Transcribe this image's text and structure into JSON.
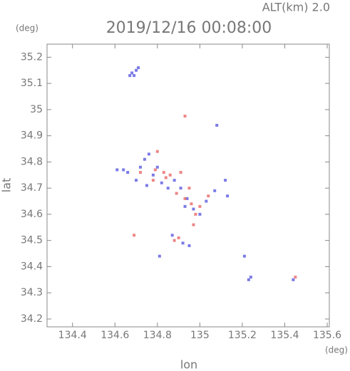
{
  "chart_data": {
    "type": "scatter",
    "title": "2019/12/16 00:08:00",
    "subtitle": "ALT(km) 2.0",
    "y_unit": "(deg)",
    "x_unit": "(deg)",
    "xlabel": "lon",
    "ylabel": "lat",
    "xlim": [
      134.28,
      135.61
    ],
    "ylim": [
      34.17,
      35.25
    ],
    "xticks": [
      134.4,
      134.6,
      134.8,
      135.0,
      135.2,
      135.4,
      135.6
    ],
    "yticks": [
      34.2,
      34.3,
      34.4,
      34.5,
      34.6,
      34.7,
      34.8,
      34.9,
      35.0,
      35.1,
      35.2
    ],
    "series": [
      {
        "color": "#5a5ae0",
        "x": [
          134.68,
          134.7,
          134.69,
          134.71,
          134.67,
          135.08,
          134.61,
          134.64,
          134.66,
          134.72,
          134.74,
          134.76,
          134.78,
          134.82,
          134.85,
          134.88,
          134.91,
          134.94,
          134.97,
          135.0,
          134.93,
          134.87,
          134.92,
          134.95,
          135.03,
          135.07,
          135.13,
          135.12,
          135.23,
          135.24,
          135.44,
          134.81,
          135.21,
          134.8,
          134.7,
          134.75
        ],
        "y": [
          35.14,
          35.15,
          35.13,
          35.16,
          35.13,
          34.94,
          34.77,
          34.77,
          34.76,
          34.78,
          34.81,
          34.83,
          34.75,
          34.72,
          34.7,
          34.73,
          34.7,
          34.66,
          34.62,
          34.6,
          34.63,
          34.52,
          34.49,
          34.48,
          34.65,
          34.69,
          34.67,
          34.73,
          34.35,
          34.36,
          34.35,
          34.44,
          34.44,
          34.78,
          34.73,
          34.71
        ]
      },
      {
        "color": "#e86868",
        "x": [
          134.93,
          134.8,
          134.79,
          134.83,
          134.86,
          134.84,
          134.89,
          134.93,
          134.96,
          134.98,
          134.9,
          134.88,
          135.0,
          134.69,
          135.45,
          134.72,
          134.78,
          135.04,
          134.95,
          134.91,
          134.97
        ],
        "y": [
          34.975,
          34.84,
          34.77,
          34.76,
          34.75,
          34.74,
          34.68,
          34.66,
          34.64,
          34.6,
          34.51,
          34.5,
          34.63,
          34.52,
          34.36,
          34.76,
          34.73,
          34.67,
          34.7,
          34.76,
          34.56
        ]
      }
    ]
  }
}
